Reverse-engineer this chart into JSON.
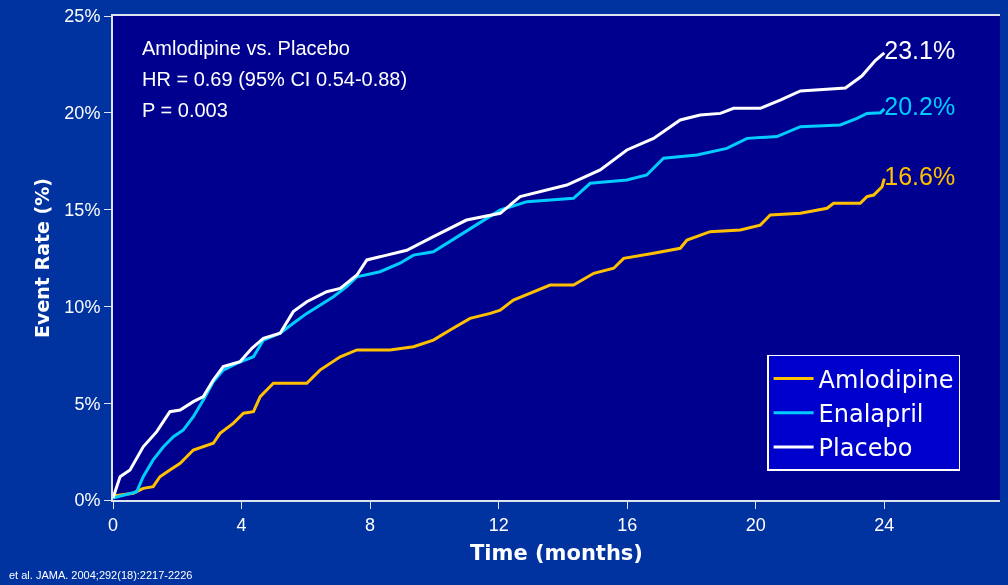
{
  "chart_data": {
    "type": "line",
    "xlabel": "Time (months)",
    "ylabel": "Event Rate (%)",
    "xlim": [
      0,
      27.6
    ],
    "xticks": [
      0,
      4,
      8,
      12,
      16,
      20,
      24
    ],
    "ylim": [
      0,
      25
    ],
    "yticks": [
      {
        "value": 0,
        "label": "0%"
      },
      {
        "value": 5,
        "label": "5%"
      },
      {
        "value": 10,
        "label": "10%"
      },
      {
        "value": 15,
        "label": "15%"
      },
      {
        "value": 20,
        "label": "20%"
      },
      {
        "value": 25,
        "label": "25%"
      }
    ],
    "grid": false,
    "legend": "bottom right",
    "marker": "none",
    "line_style": "solid",
    "annotations": [
      "Amlodipine vs. Placebo",
      "HR = 0.69 (95% CI 0.54-0.88)",
      "P = 0.003",
      "et al. JAMA. 2004;292(18):2217-2226"
    ],
    "series": [
      {
        "name": "Amlodipine",
        "color": "#ffc000",
        "x": [
          0,
          0.63,
          0.94,
          1.25,
          1.46,
          1.77,
          2.09,
          2.5,
          3.12,
          3.33,
          3.74,
          4.06,
          4.37,
          4.58,
          4.99,
          6.03,
          6.44,
          7.07,
          7.59,
          8.62,
          9.35,
          9.97,
          10.49,
          11.11,
          11.74,
          12.05,
          12.46,
          13.6,
          14.33,
          14.96,
          15.58,
          15.89,
          16.82,
          17.65,
          17.86,
          18.58,
          19.52,
          20.14,
          20.45,
          21.39,
          22.22,
          22.42,
          23.25,
          23.46,
          23.67,
          23.93,
          24
        ],
        "values": [
          0.2,
          0.35,
          0.6,
          0.69,
          1.2,
          1.55,
          1.9,
          2.58,
          2.93,
          3.44,
          3.96,
          4.48,
          4.56,
          5.34,
          6.03,
          6.03,
          6.71,
          7.4,
          7.75,
          7.75,
          7.92,
          8.26,
          8.78,
          9.38,
          9.64,
          9.81,
          10.33,
          11.1,
          11.1,
          11.71,
          11.97,
          12.48,
          12.74,
          13.0,
          13.43,
          13.86,
          13.95,
          14.2,
          14.72,
          14.81,
          15.07,
          15.33,
          15.33,
          15.67,
          15.75,
          16.18,
          16.6
        ],
        "value_labels": [
          null,
          null,
          null,
          null,
          null,
          null,
          null,
          null,
          null,
          null,
          null,
          null,
          null,
          null,
          null,
          null,
          null,
          null,
          null,
          null,
          null,
          null,
          null,
          null,
          null,
          null,
          null,
          null,
          null,
          null,
          null,
          null,
          null,
          null,
          null,
          null,
          null,
          null,
          null,
          null,
          null,
          null,
          null,
          null,
          null,
          null,
          "16.6%"
        ]
      },
      {
        "name": "Enalapril",
        "color": "#00ccff",
        "x": [
          0,
          0.74,
          0.94,
          1.25,
          1.57,
          1.88,
          2.19,
          2.5,
          2.81,
          3.12,
          3.43,
          3.85,
          4.37,
          4.68,
          5.2,
          5.61,
          6.03,
          6.86,
          7.27,
          7.59,
          8.31,
          8.93,
          9.35,
          9.97,
          11.22,
          12.05,
          12.88,
          14.33,
          14.85,
          15.99,
          16.61,
          17.13,
          18.17,
          19.1,
          19.73,
          20.66,
          21.39,
          22.63,
          23.15,
          23.46,
          23.88,
          24
        ],
        "values": [
          0.1,
          0.43,
          1.2,
          2.07,
          2.75,
          3.27,
          3.62,
          4.3,
          5.17,
          6.11,
          6.71,
          7.06,
          7.4,
          8.26,
          8.61,
          9.13,
          9.64,
          10.5,
          11.02,
          11.53,
          11.79,
          12.23,
          12.65,
          12.82,
          14.12,
          14.98,
          15.41,
          15.58,
          16.36,
          16.53,
          16.79,
          17.65,
          17.82,
          18.16,
          18.68,
          18.77,
          19.28,
          19.37,
          19.71,
          19.97,
          20.0,
          20.2
        ],
        "value_labels": [
          null,
          null,
          null,
          null,
          null,
          null,
          null,
          null,
          null,
          null,
          null,
          null,
          null,
          null,
          null,
          null,
          null,
          null,
          null,
          null,
          null,
          null,
          null,
          null,
          null,
          null,
          null,
          null,
          null,
          null,
          null,
          null,
          null,
          null,
          null,
          null,
          null,
          null,
          null,
          null,
          null,
          "20.2%"
        ]
      },
      {
        "name": "Placebo",
        "color": "#ffffff",
        "x": [
          0,
          0.22,
          0.53,
          0.94,
          1.36,
          1.77,
          2.09,
          2.5,
          2.81,
          3.12,
          3.43,
          3.95,
          4.32,
          4.68,
          5.2,
          5.61,
          6.03,
          6.65,
          7.07,
          7.59,
          7.9,
          8.52,
          9.14,
          9.97,
          11.0,
          12.05,
          12.67,
          14.12,
          15.16,
          15.99,
          16.82,
          17.65,
          18.27,
          18.9,
          19.31,
          20.14,
          20.76,
          21.39,
          22.79,
          23.3,
          23.72,
          24
        ],
        "values": [
          0.1,
          1.2,
          1.55,
          2.75,
          3.53,
          4.56,
          4.65,
          5.08,
          5.34,
          6.2,
          6.89,
          7.14,
          7.83,
          8.35,
          8.61,
          9.73,
          10.24,
          10.76,
          10.93,
          11.62,
          12.4,
          12.65,
          12.9,
          13.6,
          14.46,
          14.81,
          15.67,
          16.27,
          17.05,
          18.08,
          18.68,
          19.63,
          19.89,
          19.97,
          20.23,
          20.23,
          20.66,
          21.13,
          21.28,
          21.9,
          22.7,
          23.1
        ],
        "value_labels": [
          null,
          null,
          null,
          null,
          null,
          null,
          null,
          null,
          null,
          null,
          null,
          null,
          null,
          null,
          null,
          null,
          null,
          null,
          null,
          null,
          null,
          null,
          null,
          null,
          null,
          null,
          null,
          null,
          null,
          null,
          null,
          null,
          null,
          null,
          null,
          null,
          null,
          null,
          null,
          null,
          null,
          "23.1%"
        ]
      }
    ]
  }
}
